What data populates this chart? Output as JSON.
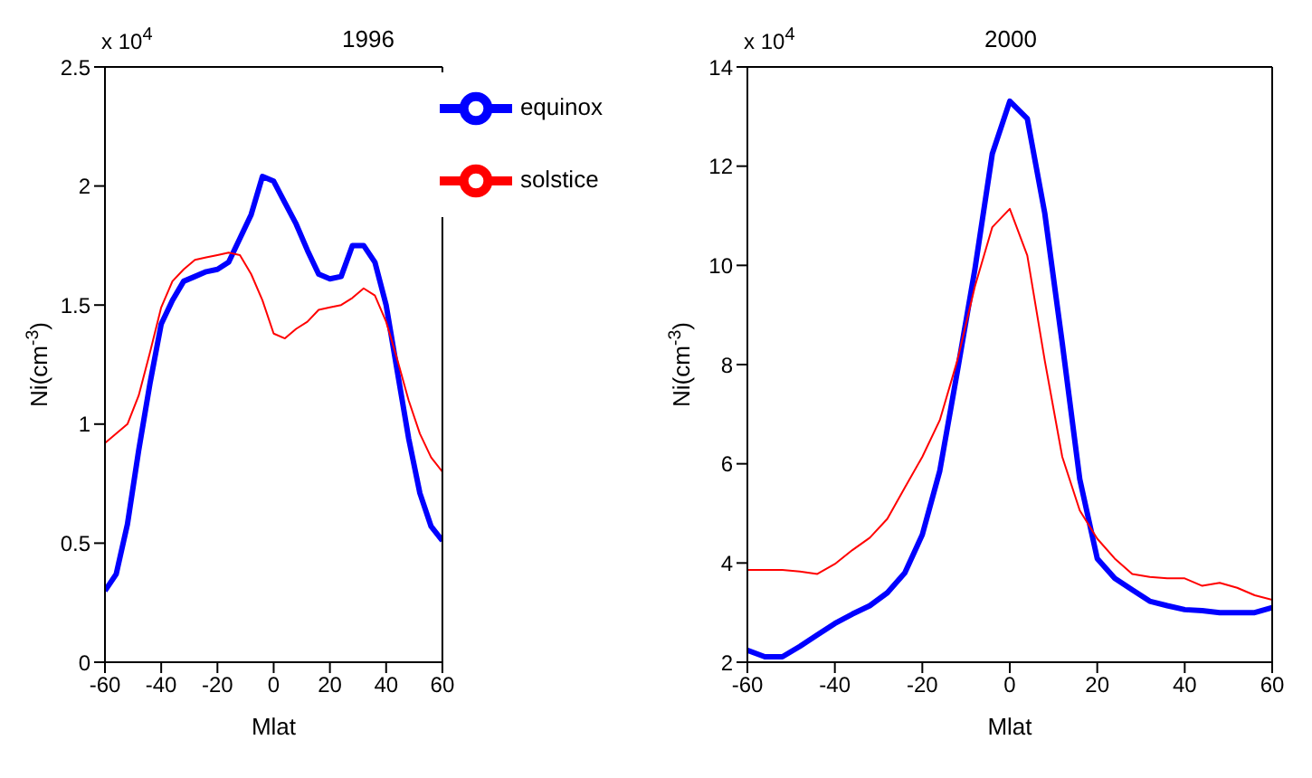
{
  "chart_data": [
    {
      "type": "line",
      "title": "1996",
      "xlabel": "Mlat",
      "ylabel": "Ni(cm$^{-3}$)",
      "annotations": [
        "x 10$^{4}$"
      ],
      "x": [
        -60,
        -56,
        -52,
        -48,
        -44,
        -40,
        -36,
        -32,
        -28,
        -24,
        -20,
        -16,
        -12,
        -8,
        -4,
        0,
        4,
        8,
        12,
        16,
        20,
        24,
        28,
        32,
        36,
        40,
        44,
        48,
        52,
        56,
        60
      ],
      "series": [
        {
          "name": "equinox",
          "color": "#0000ff",
          "values": [
            0.3,
            0.37,
            0.58,
            0.89,
            1.17,
            1.42,
            1.52,
            1.6,
            1.62,
            1.64,
            1.65,
            1.68,
            1.78,
            1.88,
            2.04,
            2.02,
            1.93,
            1.84,
            1.73,
            1.63,
            1.61,
            1.62,
            1.75,
            1.75,
            1.68,
            1.5,
            1.22,
            0.94,
            0.71,
            0.57,
            0.51
          ]
        },
        {
          "name": "solstice",
          "color": "#ff0000",
          "values": [
            0.92,
            0.96,
            1.0,
            1.12,
            1.3,
            1.49,
            1.6,
            1.65,
            1.69,
            1.7,
            1.71,
            1.72,
            1.71,
            1.63,
            1.52,
            1.38,
            1.36,
            1.4,
            1.43,
            1.48,
            1.49,
            1.5,
            1.53,
            1.57,
            1.54,
            1.43,
            1.27,
            1.1,
            0.96,
            0.86,
            0.8
          ]
        }
      ],
      "xlim": [
        -60,
        60
      ],
      "xticks": [
        -60,
        -40,
        -20,
        0,
        20,
        40,
        60
      ],
      "ylim": [
        0,
        2.5
      ],
      "yticks": [
        0,
        0.5,
        1,
        1.5,
        2,
        2.5
      ],
      "legend": "top right",
      "marker": "none",
      "line_style": "solid",
      "grid": false
    },
    {
      "type": "line",
      "title": "2000",
      "xlabel": "Mlat",
      "ylabel": "Ni(cm$^{-3}$)",
      "annotations": [
        "x 10$^{4}$"
      ],
      "x": [
        -60,
        -56,
        -52,
        -48,
        -44,
        -40,
        -36,
        -32,
        -28,
        -24,
        -20,
        -16,
        -12,
        -8,
        -4,
        0,
        4,
        8,
        12,
        16,
        20,
        24,
        28,
        32,
        36,
        40,
        44,
        48,
        52,
        56,
        60
      ],
      "series": [
        {
          "color": "#0000ff",
          "values": [
            2.24,
            2.11,
            2.11,
            2.32,
            2.55,
            2.78,
            2.97,
            3.14,
            3.4,
            3.8,
            4.57,
            5.86,
            7.86,
            9.91,
            12.25,
            13.31,
            12.96,
            11.05,
            8.43,
            5.69,
            4.09,
            3.69,
            3.46,
            3.23,
            3.14,
            3.06,
            3.04,
            3.0,
            3.0,
            3.0,
            3.1
          ]
        },
        {
          "color": "#ff0000",
          "values": [
            3.86,
            3.86,
            3.86,
            3.83,
            3.78,
            3.98,
            4.26,
            4.51,
            4.89,
            5.52,
            6.14,
            6.88,
            8.08,
            9.57,
            10.77,
            11.14,
            10.2,
            8.08,
            6.14,
            5.06,
            4.49,
            4.09,
            3.78,
            3.72,
            3.69,
            3.69,
            3.54,
            3.6,
            3.5,
            3.35,
            3.26
          ]
        }
      ],
      "xlim": [
        -60,
        60
      ],
      "xticks": [
        -60,
        -40,
        -20,
        0,
        20,
        40,
        60
      ],
      "ylim": [
        2,
        14
      ],
      "yticks": [
        2,
        4,
        6,
        8,
        10,
        12,
        14
      ],
      "legend": false,
      "marker": "none",
      "line_style": "solid",
      "grid": false
    }
  ]
}
